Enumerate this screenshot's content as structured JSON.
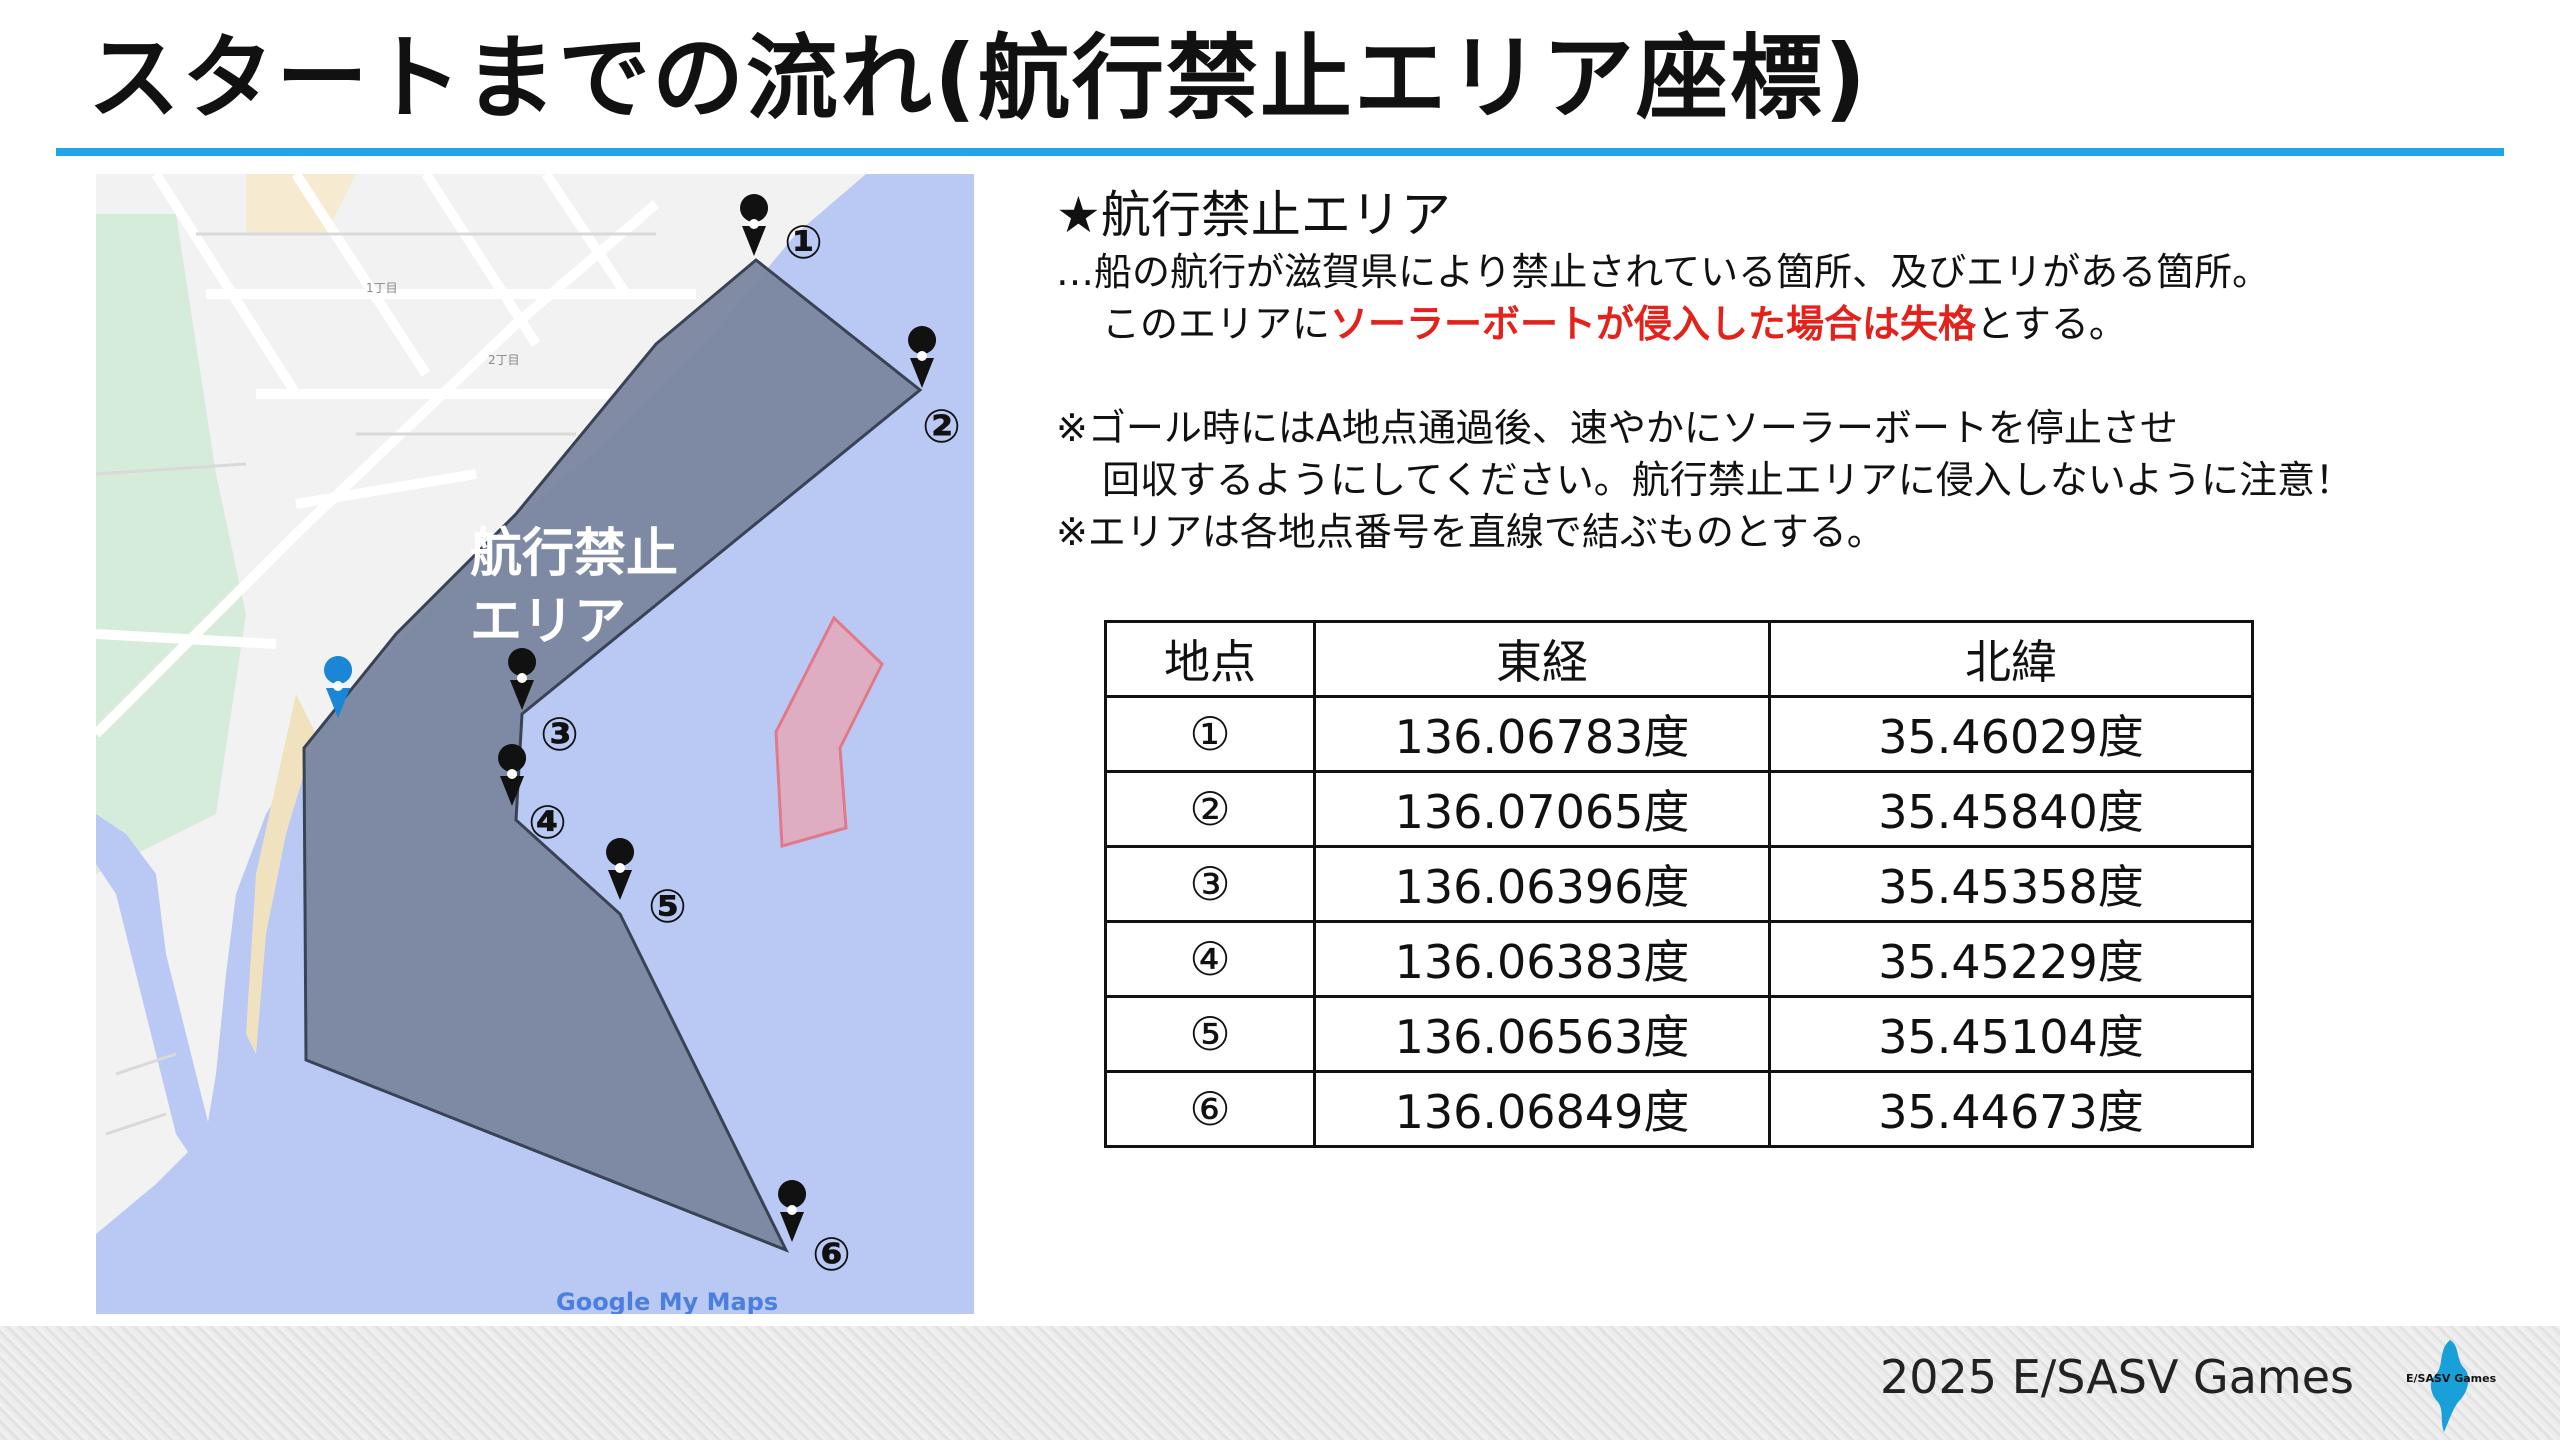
{
  "title": "スタートまでの流れ(航行禁止エリア座標)",
  "map": {
    "zone_label_line1": "航行禁止",
    "zone_label_line2": "エリア",
    "street_label_1": "1丁目",
    "street_label_2": "2丁目",
    "attribution": "Google My Maps",
    "markers": [
      "①",
      "②",
      "③",
      "④",
      "⑤",
      "⑥"
    ]
  },
  "info": {
    "heading": "★航行禁止エリア",
    "line1": "…船の航行が滋賀県により禁止されている箇所、及びエリがある箇所。",
    "line2_prefix": "このエリアに",
    "line2_red": "ソーラーボートが侵入した場合は失格",
    "line2_suffix": "とする。",
    "note1": "※ゴール時にはA地点通過後、速やかにソーラーボートを停止させ",
    "note1_cont": "回収するようにしてください。航行禁止エリアに侵入しないように注意！",
    "note2": "※エリアは各地点番号を直線で結ぶものとする。"
  },
  "table": {
    "headers": [
      "地点",
      "東経",
      "北緯"
    ],
    "rows": [
      [
        "①",
        "136.06783度",
        "35.46029度"
      ],
      [
        "②",
        "136.07065度",
        "35.45840度"
      ],
      [
        "③",
        "136.06396度",
        "35.45358度"
      ],
      [
        "④",
        "136.06383度",
        "35.45229度"
      ],
      [
        "⑤",
        "136.06563度",
        "35.45104度"
      ],
      [
        "⑥",
        "136.06849度",
        "35.44673度"
      ]
    ]
  },
  "footer": {
    "text": "2025 E/SASV Games",
    "logo_text": "E/SASV Games"
  },
  "colors": {
    "accent_rule": "#1ea6e8",
    "warning_red": "#e3221c",
    "zone_fill": "#7a869f",
    "water": "#b9c9f3"
  }
}
